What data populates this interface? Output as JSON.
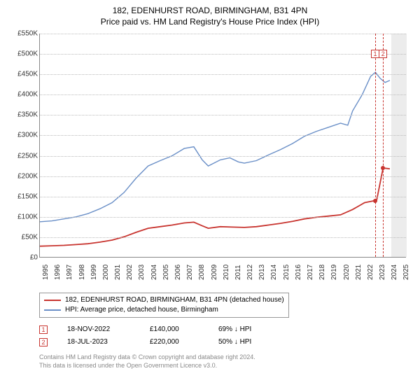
{
  "title": "182, EDENHURST ROAD, BIRMINGHAM, B31 4PN",
  "subtitle": "Price paid vs. HM Land Registry's House Price Index (HPI)",
  "chart": {
    "type": "line",
    "background_color": "#ffffff",
    "grid_color": "#bbbbbb",
    "axis_color": "#888888",
    "label_fontsize": 10,
    "x": {
      "min": 1995,
      "max": 2025.5,
      "ticks": [
        1995,
        1996,
        1997,
        1998,
        1999,
        2000,
        2001,
        2002,
        2003,
        2004,
        2005,
        2006,
        2007,
        2008,
        2009,
        2010,
        2011,
        2012,
        2013,
        2014,
        2015,
        2016,
        2017,
        2018,
        2019,
        2020,
        2021,
        2022,
        2023,
        2024,
        2025
      ]
    },
    "y": {
      "min": 0,
      "max": 550000,
      "tick_step": 50000,
      "tick_labels": [
        "£0",
        "£50K",
        "£100K",
        "£150K",
        "£200K",
        "£250K",
        "£300K",
        "£350K",
        "£400K",
        "£450K",
        "£500K",
        "£550K"
      ]
    },
    "future_band": {
      "from": 2024.2,
      "to": 2025.5,
      "color": "#ececec"
    },
    "series": [
      {
        "id": "hpi",
        "label": "HPI: Average price, detached house, Birmingham",
        "color": "#6a8fc7",
        "line_width": 1.4,
        "points": [
          [
            1995,
            88000
          ],
          [
            1996,
            90000
          ],
          [
            1997,
            95000
          ],
          [
            1998,
            100000
          ],
          [
            1999,
            108000
          ],
          [
            2000,
            120000
          ],
          [
            2001,
            135000
          ],
          [
            2002,
            160000
          ],
          [
            2003,
            195000
          ],
          [
            2004,
            225000
          ],
          [
            2005,
            238000
          ],
          [
            2006,
            250000
          ],
          [
            2007,
            268000
          ],
          [
            2007.8,
            272000
          ],
          [
            2008.5,
            240000
          ],
          [
            2009,
            225000
          ],
          [
            2010,
            240000
          ],
          [
            2010.8,
            245000
          ],
          [
            2011.5,
            235000
          ],
          [
            2012,
            232000
          ],
          [
            2013,
            238000
          ],
          [
            2014,
            252000
          ],
          [
            2015,
            265000
          ],
          [
            2016,
            280000
          ],
          [
            2017,
            298000
          ],
          [
            2018,
            310000
          ],
          [
            2019,
            320000
          ],
          [
            2020,
            330000
          ],
          [
            2020.6,
            325000
          ],
          [
            2021,
            360000
          ],
          [
            2021.8,
            400000
          ],
          [
            2022.5,
            445000
          ],
          [
            2022.9,
            455000
          ],
          [
            2023.3,
            440000
          ],
          [
            2023.7,
            430000
          ],
          [
            2024.1,
            435000
          ]
        ]
      },
      {
        "id": "price_paid",
        "label": "182, EDENHURST ROAD, BIRMINGHAM, B31 4PN (detached house)",
        "color": "#c8342f",
        "line_width": 1.8,
        "points": [
          [
            1995,
            28000
          ],
          [
            1996,
            29000
          ],
          [
            1997,
            30000
          ],
          [
            1998,
            32000
          ],
          [
            1999,
            34000
          ],
          [
            2000,
            38000
          ],
          [
            2001,
            43000
          ],
          [
            2002,
            51000
          ],
          [
            2003,
            62000
          ],
          [
            2004,
            72000
          ],
          [
            2005,
            76000
          ],
          [
            2006,
            80000
          ],
          [
            2007,
            85000
          ],
          [
            2007.8,
            87000
          ],
          [
            2008.5,
            78000
          ],
          [
            2009,
            72000
          ],
          [
            2010,
            76000
          ],
          [
            2011,
            75000
          ],
          [
            2012,
            74000
          ],
          [
            2013,
            76000
          ],
          [
            2014,
            80000
          ],
          [
            2015,
            84000
          ],
          [
            2016,
            89000
          ],
          [
            2017,
            95000
          ],
          [
            2018,
            99000
          ],
          [
            2019,
            102000
          ],
          [
            2020,
            105000
          ],
          [
            2021,
            118000
          ],
          [
            2022,
            135000
          ],
          [
            2022.88,
            140000
          ],
          [
            2022.89,
            140000
          ],
          [
            2023.0,
            140000
          ],
          [
            2023.54,
            220000
          ],
          [
            2024.1,
            218000
          ]
        ]
      }
    ],
    "markers": [
      {
        "n": "1",
        "x": 2022.88,
        "y_box": 500000,
        "y_dot": 140000,
        "date": "18-NOV-2022",
        "price": "£140,000",
        "delta": "69% ↓ HPI",
        "color": "#c8342f"
      },
      {
        "n": "2",
        "x": 2023.54,
        "y_box": 500000,
        "y_dot": 220000,
        "date": "18-JUL-2023",
        "price": "£220,000",
        "delta": "50% ↓ HPI",
        "color": "#c8342f"
      }
    ]
  },
  "legend": {
    "border_color": "#999999",
    "items": [
      {
        "color": "#c8342f",
        "label": "182, EDENHURST ROAD, BIRMINGHAM, B31 4PN (detached house)"
      },
      {
        "color": "#6a8fc7",
        "label": "HPI: Average price, detached house, Birmingham"
      }
    ]
  },
  "attribution": {
    "line1": "Contains HM Land Registry data © Crown copyright and database right 2024.",
    "line2": "This data is licensed under the Open Government Licence v3.0."
  }
}
